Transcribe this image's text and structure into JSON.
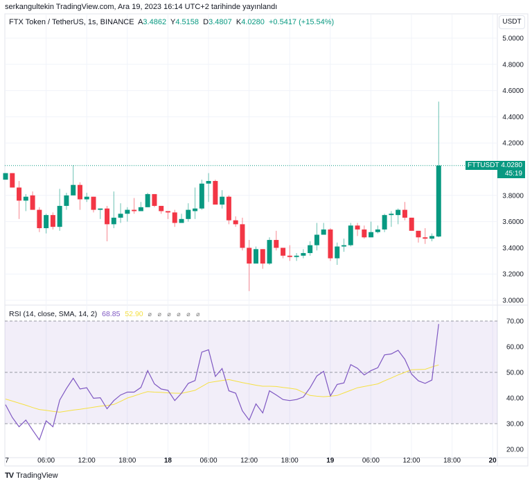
{
  "header": {
    "published": "serkangultekin TradingView.com, Ara 19, 2023 16:14 UTC+2 tarihinde yayınlandı"
  },
  "legend": {
    "symbol": "FTX Token / TetherUS, 1s, BINANCE",
    "o_label": "A",
    "o": "3.4862",
    "h_label": "Y",
    "h": "4.5158",
    "l_label": "D",
    "l": "3.4807",
    "c_label": "K",
    "c": "4.0280",
    "change": "+0.5417 (+15.54%)"
  },
  "currency_button": "USDT",
  "price_tag": {
    "symbol": "FTTUSDT",
    "price": "4.0280",
    "countdown": "45:19"
  },
  "colors": {
    "up": "#089981",
    "down": "#f23645",
    "rsi": "#7e57c2",
    "sma": "#f5e042"
  },
  "price_axis": [
    "5.0000",
    "4.8000",
    "4.6000",
    "4.4000",
    "4.2000",
    "3.8000",
    "3.6000",
    "3.4000",
    "3.2000",
    "3.0000"
  ],
  "rsi": {
    "legend": "RSI (14, close, SMA, 14, 2)",
    "value": "68.85",
    "sma_value": "52.90",
    "placeholders": "⌀ ⌀ ⌀ ⌀ ⌀ ⌀",
    "axis": [
      "70.00",
      "60.00",
      "50.00",
      "40.00",
      "30.00",
      "20.00"
    ]
  },
  "time_axis": [
    {
      "t": "7",
      "bold": false
    },
    {
      "t": "06:00",
      "bold": false
    },
    {
      "t": "12:00",
      "bold": false
    },
    {
      "t": "18:00",
      "bold": false
    },
    {
      "t": "18",
      "bold": true
    },
    {
      "t": "06:00",
      "bold": false
    },
    {
      "t": "12:00",
      "bold": false
    },
    {
      "t": "18:00",
      "bold": false
    },
    {
      "t": "19",
      "bold": true
    },
    {
      "t": "06:00",
      "bold": false
    },
    {
      "t": "12:00",
      "bold": false
    },
    {
      "t": "18:00",
      "bold": false
    },
    {
      "t": "20",
      "bold": true
    }
  ],
  "footer": {
    "brand": "TradingView"
  },
  "chart_data": {
    "type": "candlestick",
    "interval": "1h",
    "ylim": [
      2.95,
      5.05
    ],
    "last_price": 4.028,
    "ohlc": [
      [
        3.92,
        3.97,
        3.92,
        3.97
      ],
      [
        3.97,
        3.97,
        3.86,
        3.86
      ],
      [
        3.86,
        3.91,
        3.62,
        3.76
      ],
      [
        3.76,
        3.81,
        3.68,
        3.79
      ],
      [
        3.8,
        3.83,
        3.69,
        3.69
      ],
      [
        3.69,
        3.71,
        3.52,
        3.55
      ],
      [
        3.55,
        3.66,
        3.51,
        3.65
      ],
      [
        3.65,
        3.67,
        3.54,
        3.56
      ],
      [
        3.56,
        3.85,
        3.53,
        3.72
      ],
      [
        3.72,
        3.82,
        3.69,
        3.8
      ],
      [
        3.8,
        4.03,
        3.8,
        3.88
      ],
      [
        3.88,
        3.9,
        3.69,
        3.77
      ],
      [
        3.77,
        3.82,
        3.75,
        3.79
      ],
      [
        3.79,
        3.79,
        3.67,
        3.69
      ],
      [
        3.69,
        3.7,
        3.62,
        3.7
      ],
      [
        3.7,
        3.72,
        3.45,
        3.58
      ],
      [
        3.58,
        3.83,
        3.55,
        3.63
      ],
      [
        3.63,
        3.74,
        3.59,
        3.66
      ],
      [
        3.66,
        3.71,
        3.6,
        3.69
      ],
      [
        3.69,
        3.78,
        3.66,
        3.68
      ],
      [
        3.68,
        3.75,
        3.68,
        3.71
      ],
      [
        3.71,
        3.82,
        3.71,
        3.81
      ],
      [
        3.81,
        3.81,
        3.71,
        3.72
      ],
      [
        3.72,
        3.72,
        3.66,
        3.68
      ],
      [
        3.68,
        3.68,
        3.62,
        3.67
      ],
      [
        3.67,
        3.69,
        3.56,
        3.59
      ],
      [
        3.59,
        3.66,
        3.59,
        3.62
      ],
      [
        3.62,
        3.74,
        3.6,
        3.69
      ],
      [
        3.68,
        3.86,
        3.62,
        3.7
      ],
      [
        3.7,
        3.92,
        3.69,
        3.89
      ],
      [
        3.89,
        3.97,
        3.75,
        3.91
      ],
      [
        3.91,
        3.92,
        3.73,
        3.73
      ],
      [
        3.73,
        3.84,
        3.7,
        3.79
      ],
      [
        3.79,
        3.8,
        3.58,
        3.61
      ],
      [
        3.61,
        3.64,
        3.56,
        3.58
      ],
      [
        3.58,
        3.63,
        3.38,
        3.4
      ],
      [
        3.4,
        3.46,
        3.07,
        3.28
      ],
      [
        3.28,
        3.41,
        3.28,
        3.39
      ],
      [
        3.39,
        3.39,
        3.24,
        3.28
      ],
      [
        3.28,
        3.48,
        3.27,
        3.46
      ],
      [
        3.46,
        3.53,
        3.38,
        3.4
      ],
      [
        3.4,
        3.4,
        3.32,
        3.34
      ],
      [
        3.34,
        3.42,
        3.3,
        3.33
      ],
      [
        3.33,
        3.36,
        3.3,
        3.34
      ],
      [
        3.34,
        3.39,
        3.32,
        3.36
      ],
      [
        3.36,
        3.45,
        3.34,
        3.42
      ],
      [
        3.42,
        3.59,
        3.38,
        3.5
      ],
      [
        3.5,
        3.59,
        3.5,
        3.54
      ],
      [
        3.54,
        3.55,
        3.3,
        3.32
      ],
      [
        3.32,
        3.44,
        3.27,
        3.41
      ],
      [
        3.41,
        3.47,
        3.37,
        3.42
      ],
      [
        3.42,
        3.59,
        3.41,
        3.57
      ],
      [
        3.57,
        3.59,
        3.49,
        3.54
      ],
      [
        3.54,
        3.57,
        3.47,
        3.48
      ],
      [
        3.48,
        3.6,
        3.48,
        3.52
      ],
      [
        3.52,
        3.57,
        3.51,
        3.54
      ],
      [
        3.54,
        3.66,
        3.52,
        3.65
      ],
      [
        3.65,
        3.68,
        3.56,
        3.66
      ],
      [
        3.65,
        3.7,
        3.58,
        3.69
      ],
      [
        3.69,
        3.75,
        3.61,
        3.63
      ],
      [
        3.63,
        3.63,
        3.53,
        3.53
      ],
      [
        3.53,
        3.53,
        3.44,
        3.48
      ],
      [
        3.48,
        3.55,
        3.43,
        3.47
      ],
      [
        3.47,
        3.51,
        3.45,
        3.49
      ],
      [
        3.4862,
        4.5158,
        3.4807,
        4.028
      ]
    ],
    "rsi": [
      37.4,
      32.4,
      28.8,
      31.4,
      27.5,
      23.7,
      31.1,
      28.8,
      39.2,
      43.7,
      47.7,
      43.5,
      44,
      39.9,
      40.1,
      35.8,
      39,
      41.2,
      42.3,
      42.3,
      44.1,
      50.7,
      45.5,
      43.5,
      43,
      39,
      41.9,
      45.7,
      46.8,
      57.9,
      58.8,
      48.4,
      51.5,
      42.8,
      41.9,
      35,
      31.4,
      37.7,
      34.2,
      42.8,
      41.2,
      39.4,
      39,
      39.4,
      40.4,
      44,
      48.6,
      50.4,
      40.8,
      45.3,
      45.9,
      53,
      51.6,
      49,
      50.7,
      51.8,
      56.8,
      57.2,
      58.6,
      55.1,
      49.3,
      46.7,
      45.7,
      47,
      68.85
    ],
    "rsi_sma": [
      39.6,
      38.8,
      38,
      37.2,
      36.3,
      35.5,
      35.2,
      34.8,
      34.5,
      34.9,
      35.3,
      35.6,
      36,
      36.4,
      36.8,
      37.1,
      37.5,
      38.7,
      40,
      40.8,
      41.7,
      42.5,
      42.3,
      42.2,
      42,
      41.9,
      41.8,
      42.4,
      43,
      44.5,
      46,
      46.4,
      46.8,
      47.2,
      46.6,
      46,
      45.5,
      45,
      44.6,
      44.6,
      44.5,
      44.1,
      43.8,
      43.4,
      42.2,
      41,
      40.7,
      40.5,
      40.7,
      41,
      42,
      43,
      44,
      44.5,
      45,
      45.5,
      46.7,
      47.8,
      49,
      50,
      51,
      51.1,
      51.2,
      52.1,
      52.9
    ],
    "rsi_levels": [
      70,
      50,
      30
    ],
    "rsi_ylim": [
      20,
      70
    ]
  }
}
